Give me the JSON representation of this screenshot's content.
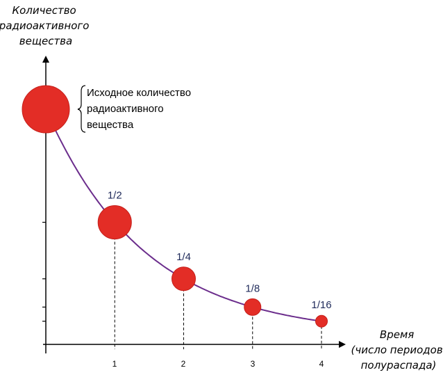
{
  "chart_data": {
    "type": "scatter",
    "title": "",
    "ylabel_lines": [
      "Количество",
      "радиоактивного",
      "вещества"
    ],
    "xlabel_lines": [
      "Время",
      "(число периодов",
      "полураспада)"
    ],
    "x_ticks": [
      "1",
      "2",
      "3",
      "4"
    ],
    "xlim": [
      0,
      4.25
    ],
    "ylim": [
      0,
      1.1
    ],
    "points": [
      {
        "x": 0,
        "y": 1,
        "label": ""
      },
      {
        "x": 1,
        "y": 0.5,
        "label": "1/2"
      },
      {
        "x": 2,
        "y": 0.25,
        "label": "1/4"
      },
      {
        "x": 3,
        "y": 0.125,
        "label": "1/8"
      },
      {
        "x": 4,
        "y": 0.0625,
        "label": "1/16"
      }
    ],
    "curve": "exponential decay, halving each period",
    "annotation_lines": [
      "Исходное количество",
      "радиоактивного",
      "вещества"
    ],
    "colors": {
      "point": "#e32d26",
      "curve": "#6b2d8c",
      "axis": "#000000",
      "label": "#1f2a5a"
    }
  }
}
